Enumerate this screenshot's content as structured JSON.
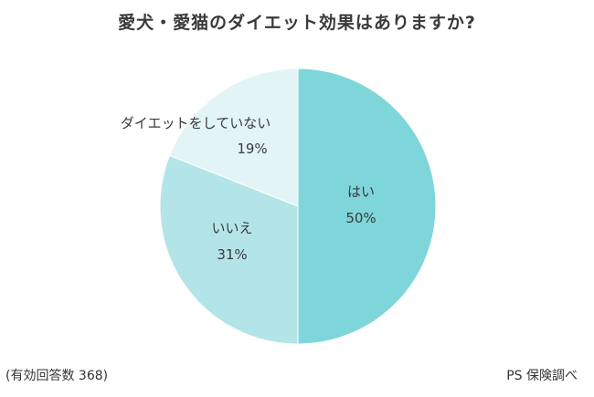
{
  "chart_data": {
    "type": "pie",
    "title": "愛犬・愛猫のダイエット効果はありますか?",
    "slices": [
      {
        "label": "はい",
        "value": 50,
        "value_label": "50%",
        "color": "#7fd6da"
      },
      {
        "label": "いいえ",
        "value": 31,
        "value_label": "31%",
        "color": "#b3e5e8"
      },
      {
        "label": "ダイエットをしていない",
        "value": 19,
        "value_label": "19%",
        "color": "#e3f4f6"
      }
    ],
    "start": "top",
    "direction": "clockwise"
  },
  "footnotes": {
    "respondents": "(有効回答数 368)",
    "source": "PS 保険調べ"
  }
}
